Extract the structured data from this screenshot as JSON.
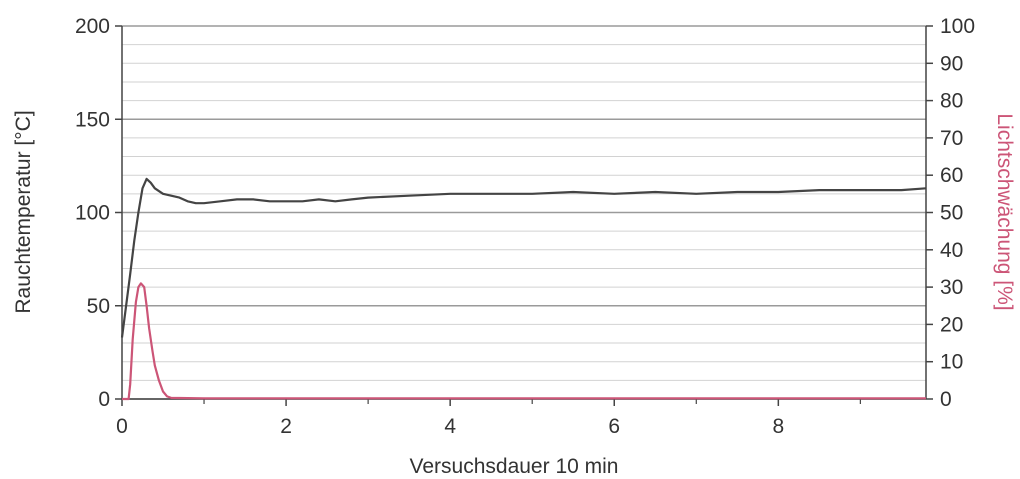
{
  "chart_data": {
    "type": "line",
    "title": "",
    "xlabel": "Versuchsdauer 10 min",
    "ylabel_left": "Rauchtemperatur [°C]",
    "ylabel_right": "Lichtschwächung [%]",
    "xlim": [
      0,
      9.8
    ],
    "ylim_left": [
      0,
      200
    ],
    "ylim_right": [
      0,
      100
    ],
    "x_ticks": [
      "0",
      "2",
      "4",
      "6",
      "8"
    ],
    "y_ticks_left": [
      "0",
      "50",
      "100",
      "150",
      "200"
    ],
    "y_ticks_right": [
      "0",
      "10",
      "20",
      "30",
      "40",
      "50",
      "60",
      "70",
      "80",
      "90",
      "100"
    ],
    "grid": true,
    "series": [
      {
        "axis": "left",
        "color": "#444444",
        "x": [
          0,
          0.05,
          0.1,
          0.15,
          0.2,
          0.25,
          0.3,
          0.35,
          0.4,
          0.5,
          0.6,
          0.7,
          0.8,
          0.9,
          1.0,
          1.2,
          1.4,
          1.6,
          1.8,
          2.0,
          2.2,
          2.4,
          2.6,
          2.8,
          3.0,
          3.5,
          4.0,
          4.5,
          5.0,
          5.5,
          6.0,
          6.5,
          7.0,
          7.5,
          8.0,
          8.5,
          9.0,
          9.5,
          9.8
        ],
        "y": [
          33,
          50,
          67,
          85,
          100,
          113,
          118,
          116,
          113,
          110,
          109,
          108,
          106,
          105,
          105,
          106,
          107,
          107,
          106,
          106,
          106,
          107,
          106,
          107,
          108,
          109,
          110,
          110,
          110,
          111,
          110,
          111,
          110,
          111,
          111,
          112,
          112,
          112,
          113
        ]
      },
      {
        "axis": "right",
        "color": "#cc5577",
        "x": [
          0,
          0.08,
          0.1,
          0.13,
          0.17,
          0.2,
          0.23,
          0.27,
          0.3,
          0.33,
          0.37,
          0.4,
          0.45,
          0.5,
          0.55,
          0.6,
          1.0,
          2.0,
          4.0,
          6.0,
          8.0,
          9.8
        ],
        "y": [
          0,
          0,
          4,
          16,
          26,
          30,
          31,
          30,
          25,
          19,
          13,
          9,
          5,
          2,
          0.7,
          0.3,
          0.2,
          0.2,
          0.2,
          0.2,
          0.2,
          0.2
        ]
      }
    ]
  }
}
